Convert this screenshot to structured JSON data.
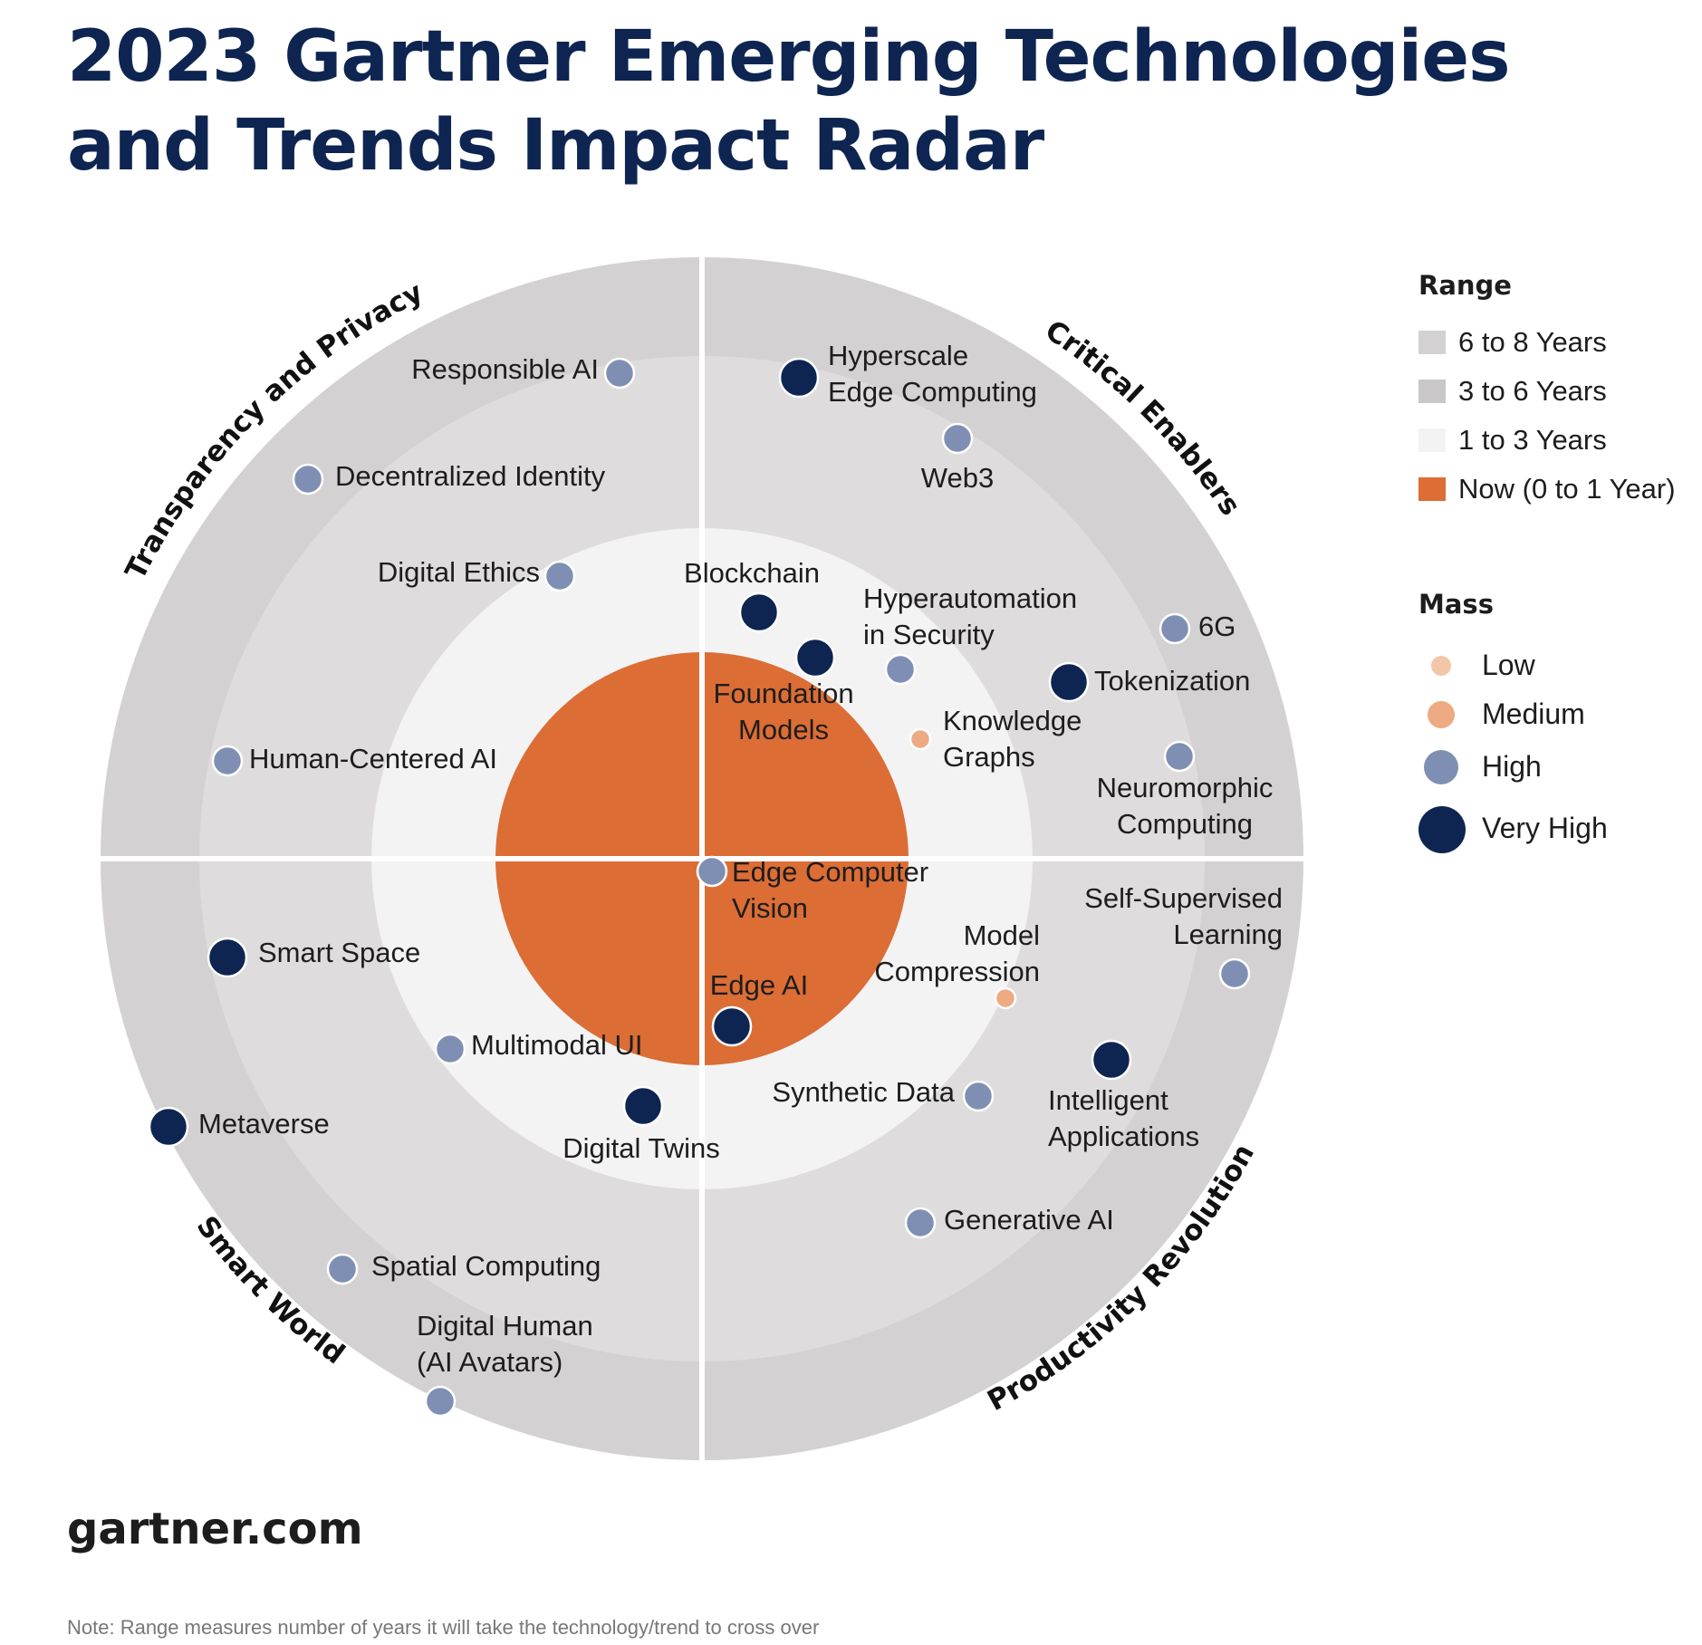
{
  "title": {
    "line1": "2023 Gartner Emerging Technologies",
    "line2": "and Trends Impact Radar"
  },
  "colors": {
    "navy": "#0e2552",
    "orange": "#dc6d35",
    "ring_6_8": "#d3d1d2",
    "ring_3_6": "#dedcdd",
    "ring_1_3": "#f3f3f3",
    "mass_low": "#f3c6a8",
    "mass_medium": "#eeaa82",
    "mass_high": "#7f8fb4",
    "mass_very_high": "#0e2552"
  },
  "quadrants": [
    {
      "id": "transparency",
      "label": "Transparency and Privacy"
    },
    {
      "id": "critical",
      "label": "Critical Enablers"
    },
    {
      "id": "smart",
      "label": "Smart World"
    },
    {
      "id": "productivity",
      "label": "Productivity Revolution"
    }
  ],
  "legend": {
    "range_title": "Range",
    "range": [
      {
        "label": "6 to 8 Years",
        "color": "#d3d1d2"
      },
      {
        "label": "3 to 6 Years",
        "color": "#c9c7c8"
      },
      {
        "label": "1 to 3 Years",
        "color": "#f3f3f3"
      },
      {
        "label": "Now (0 to 1 Year)",
        "color": "#dc6d35"
      }
    ],
    "mass_title": "Mass",
    "mass": [
      {
        "label": "Low",
        "color": "#f3c6a8",
        "level": "low"
      },
      {
        "label": "Medium",
        "color": "#eeaa82",
        "level": "medium"
      },
      {
        "label": "High",
        "color": "#7f8fb4",
        "level": "high"
      },
      {
        "label": "Very High",
        "color": "#0e2552",
        "level": "very_high"
      }
    ]
  },
  "technologies": [
    {
      "name": [
        "Responsible AI"
      ],
      "quadrant": "Transparency and Privacy",
      "range": "6 to 8 Years",
      "mass": "high"
    },
    {
      "name": [
        "Decentralized Identity"
      ],
      "quadrant": "Transparency and Privacy",
      "range": "6 to 8 Years",
      "mass": "high"
    },
    {
      "name": [
        "Digital Ethics"
      ],
      "quadrant": "Transparency and Privacy",
      "range": "3 to 6 Years",
      "mass": "high"
    },
    {
      "name": [
        "Human-Centered AI"
      ],
      "quadrant": "Transparency and Privacy",
      "range": "3 to 6 Years",
      "mass": "high"
    },
    {
      "name": [
        "Hyperscale",
        "Edge Computing"
      ],
      "quadrant": "Critical Enablers",
      "range": "6 to 8 Years",
      "mass": "very_high"
    },
    {
      "name": [
        "Web3"
      ],
      "quadrant": "Critical Enablers",
      "range": "6 to 8 Years",
      "mass": "high"
    },
    {
      "name": [
        "Blockchain"
      ],
      "quadrant": "Critical Enablers",
      "range": "1 to 3 Years",
      "mass": "very_high"
    },
    {
      "name": [
        "Hyperautomation",
        "in Security"
      ],
      "quadrant": "Critical Enablers",
      "range": "3 to 6 Years",
      "mass": "high"
    },
    {
      "name": [
        "6G"
      ],
      "quadrant": "Critical Enablers",
      "range": "6 to 8 Years",
      "mass": "high"
    },
    {
      "name": [
        "Tokenization"
      ],
      "quadrant": "Critical Enablers",
      "range": "3 to 6 Years",
      "mass": "very_high"
    },
    {
      "name": [
        "Foundation",
        "Models"
      ],
      "quadrant": "Critical Enablers",
      "range": "1 to 3 Years",
      "mass": "very_high"
    },
    {
      "name": [
        "Knowledge",
        "Graphs"
      ],
      "quadrant": "Critical Enablers",
      "range": "1 to 3 Years",
      "mass": "medium"
    },
    {
      "name": [
        "Neuromorphic",
        "Computing"
      ],
      "quadrant": "Critical Enablers",
      "range": "6 to 8 Years",
      "mass": "high"
    },
    {
      "name": [
        "Edge Computer",
        "Vision"
      ],
      "quadrant": "Productivity Revolution",
      "range": "Now (0 to 1 Year)",
      "mass": "high"
    },
    {
      "name": [
        "Self-Supervised",
        "Learning"
      ],
      "quadrant": "Productivity Revolution",
      "range": "6 to 8 Years",
      "mass": "high"
    },
    {
      "name": [
        "Model",
        "Compression"
      ],
      "quadrant": "Productivity Revolution",
      "range": "1 to 3 Years",
      "mass": "medium"
    },
    {
      "name": [
        "Edge AI"
      ],
      "quadrant": "Productivity Revolution",
      "range": "Now (0 to 1 Year)",
      "mass": "very_high"
    },
    {
      "name": [
        "Synthetic Data"
      ],
      "quadrant": "Productivity Revolution",
      "range": "1 to 3 Years",
      "mass": "high"
    },
    {
      "name": [
        "Intelligent",
        "Applications"
      ],
      "quadrant": "Productivity Revolution",
      "range": "3 to 6 Years",
      "mass": "very_high"
    },
    {
      "name": [
        "Generative AI"
      ],
      "quadrant": "Productivity Revolution",
      "range": "3 to 6 Years",
      "mass": "high"
    },
    {
      "name": [
        "Smart Space"
      ],
      "quadrant": "Smart World",
      "range": "3 to 6 Years",
      "mass": "very_high"
    },
    {
      "name": [
        "Multimodal UI"
      ],
      "quadrant": "Smart World",
      "range": "1 to 3 Years",
      "mass": "high"
    },
    {
      "name": [
        "Digital Twins"
      ],
      "quadrant": "Smart World",
      "range": "1 to 3 Years",
      "mass": "very_high"
    },
    {
      "name": [
        "Metaverse"
      ],
      "quadrant": "Smart World",
      "range": "6 to 8 Years",
      "mass": "very_high"
    },
    {
      "name": [
        "Spatial Computing"
      ],
      "quadrant": "Smart World",
      "range": "3 to 6 Years",
      "mass": "high"
    },
    {
      "name": [
        "Digital Human",
        "(AI Avatars)"
      ],
      "quadrant": "Smart World",
      "range": "6 to 8 Years",
      "mass": "high"
    }
  ],
  "footer": {
    "site": "gartner.com",
    "note": "Note: Range measures number of years it will take the technology/trend to cross over"
  }
}
